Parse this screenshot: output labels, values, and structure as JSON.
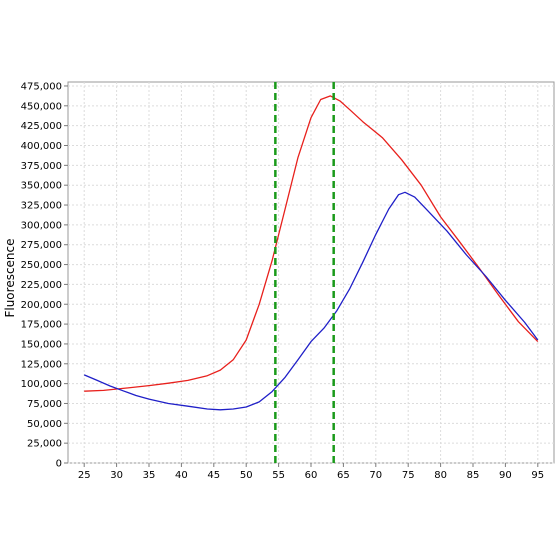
{
  "chart_data": {
    "type": "line",
    "title": "",
    "xlabel": "",
    "ylabel": "Fluorescence",
    "xlim": [
      22.5,
      97.5
    ],
    "ylim": [
      0,
      480000
    ],
    "x_ticks": [
      25,
      30,
      35,
      40,
      45,
      50,
      55,
      60,
      65,
      70,
      75,
      80,
      85,
      90,
      95
    ],
    "x_tick_labels": [
      "25",
      "30",
      "35",
      "40",
      "45",
      "50",
      "55",
      "60",
      "65",
      "70",
      "75",
      "80",
      "85",
      "90",
      "95"
    ],
    "y_ticks": [
      0,
      25000,
      50000,
      75000,
      100000,
      125000,
      150000,
      175000,
      200000,
      225000,
      250000,
      275000,
      300000,
      325000,
      350000,
      375000,
      400000,
      425000,
      450000,
      475000
    ],
    "y_tick_labels": [
      "0",
      "25,000",
      "50,000",
      "75,000",
      "100,000",
      "125,000",
      "150,000",
      "175,000",
      "200,000",
      "225,000",
      "250,000",
      "275,000",
      "300,000",
      "325,000",
      "350,000",
      "375,000",
      "400,000",
      "425,000",
      "450,000",
      "475,000"
    ],
    "grid": true,
    "series": [
      {
        "color": "#e8201c",
        "points": [
          [
            25,
            90500
          ],
          [
            28,
            91500
          ],
          [
            31,
            94000
          ],
          [
            35,
            97500
          ],
          [
            38,
            100500
          ],
          [
            41,
            104000
          ],
          [
            44,
            110000
          ],
          [
            46,
            117000
          ],
          [
            48,
            130000
          ],
          [
            50,
            155000
          ],
          [
            52,
            200000
          ],
          [
            54,
            255000
          ],
          [
            56,
            320000
          ],
          [
            58,
            385000
          ],
          [
            60,
            435000
          ],
          [
            61.5,
            458000
          ],
          [
            63,
            462500
          ],
          [
            64.5,
            456000
          ],
          [
            66,
            445000
          ],
          [
            68,
            430000
          ],
          [
            71,
            410000
          ],
          [
            74,
            382000
          ],
          [
            77,
            350000
          ],
          [
            80,
            310000
          ],
          [
            83,
            278000
          ],
          [
            86,
            245000
          ],
          [
            89,
            211000
          ],
          [
            92,
            178000
          ],
          [
            95,
            153000
          ]
        ]
      },
      {
        "color": "#1f1fc8",
        "points": [
          [
            25,
            111000
          ],
          [
            27,
            104000
          ],
          [
            29,
            97000
          ],
          [
            31,
            91000
          ],
          [
            33,
            85000
          ],
          [
            35,
            80500
          ],
          [
            38,
            75000
          ],
          [
            41,
            71500
          ],
          [
            44,
            68000
          ],
          [
            46,
            67000
          ],
          [
            48,
            68000
          ],
          [
            50,
            70500
          ],
          [
            52,
            77000
          ],
          [
            54,
            90000
          ],
          [
            56,
            108000
          ],
          [
            58,
            130000
          ],
          [
            60,
            153000
          ],
          [
            62,
            170000
          ],
          [
            64,
            192000
          ],
          [
            66,
            220000
          ],
          [
            68,
            253000
          ],
          [
            70,
            288000
          ],
          [
            72,
            320000
          ],
          [
            73.5,
            338000
          ],
          [
            74.5,
            341000
          ],
          [
            76,
            335000
          ],
          [
            78,
            318000
          ],
          [
            81,
            292000
          ],
          [
            84,
            262000
          ],
          [
            87,
            235000
          ],
          [
            90,
            205000
          ],
          [
            93,
            177000
          ],
          [
            95,
            155000
          ]
        ]
      }
    ],
    "vlines": [
      {
        "x": 54.5,
        "color": "#1a9a1a",
        "style": "dashed"
      },
      {
        "x": 63.5,
        "color": "#1a9a1a",
        "style": "dashed"
      }
    ]
  }
}
